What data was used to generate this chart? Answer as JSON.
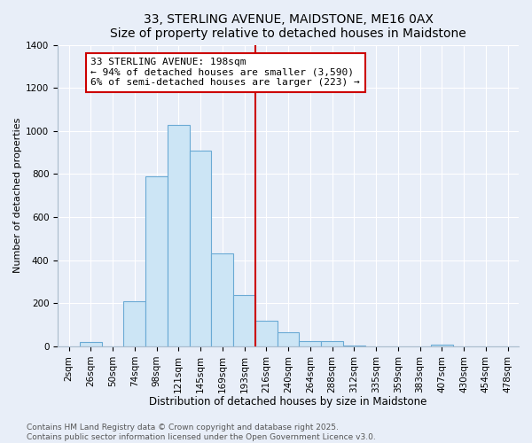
{
  "title": "33, STERLING AVENUE, MAIDSTONE, ME16 0AX",
  "subtitle": "Size of property relative to detached houses in Maidstone",
  "xlabel": "Distribution of detached houses by size in Maidstone",
  "ylabel": "Number of detached properties",
  "categories": [
    "2sqm",
    "26sqm",
    "50sqm",
    "74sqm",
    "98sqm",
    "121sqm",
    "145sqm",
    "169sqm",
    "193sqm",
    "216sqm",
    "240sqm",
    "264sqm",
    "288sqm",
    "312sqm",
    "335sqm",
    "359sqm",
    "383sqm",
    "407sqm",
    "430sqm",
    "454sqm",
    "478sqm"
  ],
  "values": [
    0,
    20,
    0,
    210,
    790,
    1030,
    910,
    430,
    240,
    120,
    65,
    25,
    25,
    5,
    0,
    0,
    0,
    10,
    0,
    0,
    0
  ],
  "bar_color": "#cce5f5",
  "bar_edge_color": "#6aaad4",
  "vline_x_index": 8.5,
  "vline_color": "#cc0000",
  "annotation_title": "33 STERLING AVENUE: 198sqm",
  "annotation_line1": "← 94% of detached houses are smaller (3,590)",
  "annotation_line2": "6% of semi-detached houses are larger (223) →",
  "annotation_box_color": "#cc0000",
  "ylim": [
    0,
    1400
  ],
  "yticks": [
    0,
    200,
    400,
    600,
    800,
    1000,
    1200,
    1400
  ],
  "footer_line1": "Contains HM Land Registry data © Crown copyright and database right 2025.",
  "footer_line2": "Contains public sector information licensed under the Open Government Licence v3.0.",
  "bg_color": "#e8eef8",
  "plot_bg_color": "#e8eef8",
  "grid_color": "#ffffff",
  "title_fontsize": 10,
  "xlabel_fontsize": 8.5,
  "ylabel_fontsize": 8,
  "tick_fontsize": 7.5,
  "annotation_fontsize": 8,
  "footer_fontsize": 6.5
}
